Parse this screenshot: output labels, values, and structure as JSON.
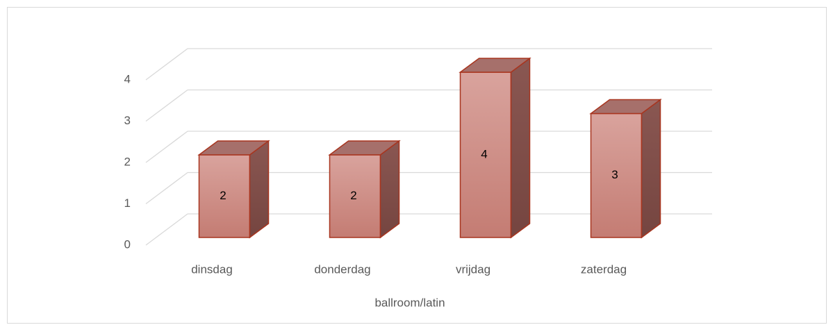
{
  "chart_data": {
    "type": "bar3d",
    "categories": [
      "dinsdag",
      "donderdag",
      "vrijdag",
      "zaterdag"
    ],
    "values": [
      2,
      2,
      4,
      3
    ],
    "x_label": "ballroom/latin",
    "color": "#d19189",
    "ylim": [
      0,
      4
    ],
    "yticks": [
      0,
      1,
      2,
      3,
      4
    ],
    "grid": true
  }
}
